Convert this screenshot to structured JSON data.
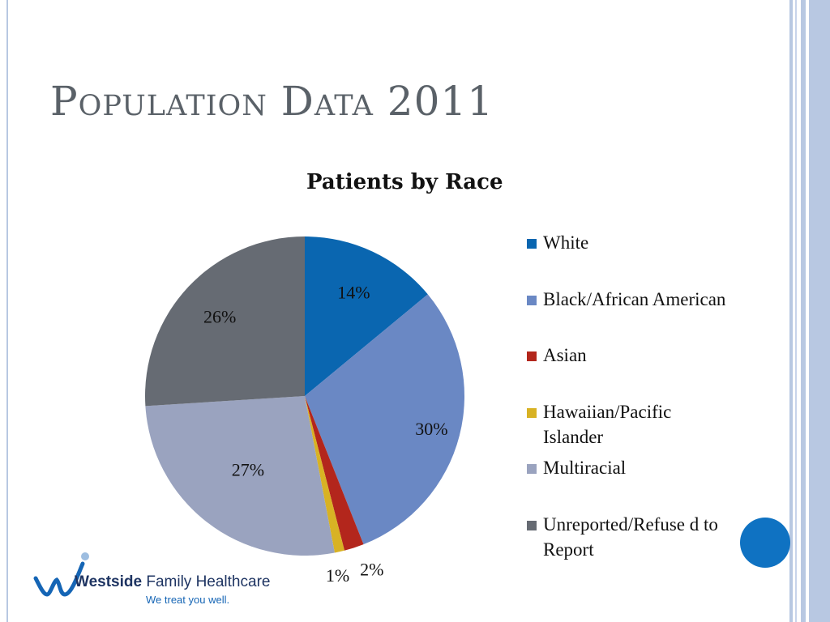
{
  "slide": {
    "title": "Population Data 2011"
  },
  "chart_data": {
    "type": "pie",
    "title": "Patients by Race",
    "categories": [
      "White",
      "Black/African American",
      "Asian",
      "Hawaiian/Pacific Islander",
      "Multiracial",
      "Unreported/Refused to Report"
    ],
    "values": [
      14,
      30,
      2,
      1,
      27,
      26
    ],
    "data_labels": [
      "14%",
      "30%",
      "2%",
      "1%",
      "27%",
      "26%"
    ],
    "colors": [
      "#0a66b0",
      "#6a88c4",
      "#b3261c",
      "#d8b224",
      "#9aa3bf",
      "#666b73"
    ],
    "legend_labels": [
      "White",
      "Black/African American",
      "Asian",
      "Hawaiian/Pacific Islander",
      "Multiracial",
      "Unreported/Refuse d to Report"
    ],
    "legend_position": "right",
    "start": "12 o'clock",
    "direction": "clockwise"
  },
  "logo": {
    "name_bold": "Westside",
    "name_rest": "Family Healthcare",
    "tagline": "We treat you well."
  },
  "theme": {
    "accent": "#0f72c2",
    "border_colors": [
      "#b8c8e2",
      "#8aa6d2"
    ]
  }
}
